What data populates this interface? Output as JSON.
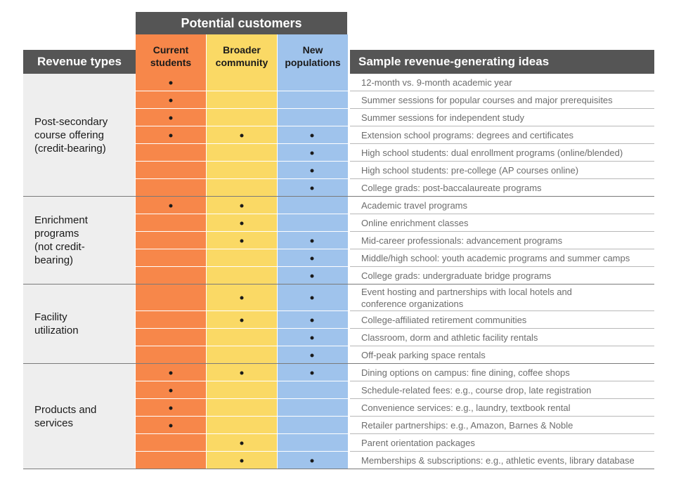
{
  "header": {
    "potential_customers": "Potential customers",
    "revenue_types": "Revenue types",
    "sample_ideas": "Sample revenue-generating ideas",
    "col_current": "Current\nstudents",
    "col_broader": "Broader\ncommunity",
    "col_new": "New\npopulations"
  },
  "colors": {
    "current": "#f7874a",
    "broader": "#fad965",
    "new": "#9fc3ec",
    "header": "#555555",
    "group_bg": "#eeeeee"
  },
  "groups": [
    {
      "label": "Post-secondary\ncourse offering\n(credit-bearing)",
      "rows": [
        0,
        6
      ]
    },
    {
      "label": "Enrichment\nprograms\n(not credit-\nbearing)",
      "rows": [
        7,
        11
      ]
    },
    {
      "label": "Facility\nutilization",
      "rows": [
        12,
        15
      ]
    },
    {
      "label": "Products and\nservices",
      "rows": [
        16,
        21
      ]
    }
  ],
  "rows": [
    {
      "idea": "12-month vs. 9-month academic year",
      "current": true,
      "broader": false,
      "new": false
    },
    {
      "idea": "Summer sessions for popular courses and major prerequisites",
      "current": true,
      "broader": false,
      "new": false
    },
    {
      "idea": "Summer sessions for independent study",
      "current": true,
      "broader": false,
      "new": false
    },
    {
      "idea": "Extension school programs: degrees and certificates",
      "current": true,
      "broader": true,
      "new": true
    },
    {
      "idea": "High school students: dual enrollment programs (online/blended)",
      "current": false,
      "broader": false,
      "new": true
    },
    {
      "idea": "High school students: pre-college (AP courses online)",
      "current": false,
      "broader": false,
      "new": true
    },
    {
      "idea": "College grads: post-baccalaureate programs",
      "current": false,
      "broader": false,
      "new": true
    },
    {
      "idea": "Academic travel programs",
      "current": true,
      "broader": true,
      "new": false
    },
    {
      "idea": "Online enrichment classes",
      "current": false,
      "broader": true,
      "new": false
    },
    {
      "idea": "Mid-career professionals: advancement programs",
      "current": false,
      "broader": true,
      "new": true
    },
    {
      "idea": "Middle/high school: youth academic programs and summer camps",
      "current": false,
      "broader": false,
      "new": true
    },
    {
      "idea": "College grads: undergraduate bridge programs",
      "current": false,
      "broader": false,
      "new": true
    },
    {
      "idea": "Event hosting and partnerships with local hotels and\nconference organizations",
      "current": false,
      "broader": true,
      "new": true
    },
    {
      "idea": "College-affiliated retirement communities",
      "current": false,
      "broader": true,
      "new": true
    },
    {
      "idea": "Classroom, dorm and athletic facility rentals",
      "current": false,
      "broader": false,
      "new": true
    },
    {
      "idea": "Off-peak parking space rentals",
      "current": false,
      "broader": false,
      "new": true
    },
    {
      "idea": "Dining options on campus: fine dining, coffee shops",
      "current": true,
      "broader": true,
      "new": true
    },
    {
      "idea": "Schedule-related fees: e.g., course drop, late registration",
      "current": true,
      "broader": false,
      "new": false
    },
    {
      "idea": "Convenience services: e.g., laundry, textbook rental",
      "current": true,
      "broader": false,
      "new": false
    },
    {
      "idea": "Retailer partnerships: e.g., Amazon, Barnes & Noble",
      "current": true,
      "broader": false,
      "new": false
    },
    {
      "idea": "Parent orientation packages",
      "current": false,
      "broader": true,
      "new": false
    },
    {
      "idea": "Memberships & subscriptions: e.g., athletic events, library database",
      "current": false,
      "broader": true,
      "new": true
    }
  ]
}
